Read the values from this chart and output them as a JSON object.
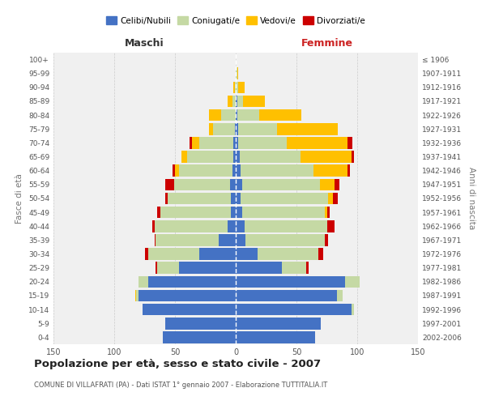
{
  "age_groups": [
    "0-4",
    "5-9",
    "10-14",
    "15-19",
    "20-24",
    "25-29",
    "30-34",
    "35-39",
    "40-44",
    "45-49",
    "50-54",
    "55-59",
    "60-64",
    "65-69",
    "70-74",
    "75-79",
    "80-84",
    "85-89",
    "90-94",
    "95-99",
    "100+"
  ],
  "birth_years": [
    "2002-2006",
    "1997-2001",
    "1992-1996",
    "1987-1991",
    "1982-1986",
    "1977-1981",
    "1972-1976",
    "1967-1971",
    "1962-1966",
    "1957-1961",
    "1952-1956",
    "1947-1951",
    "1942-1946",
    "1937-1941",
    "1932-1936",
    "1927-1931",
    "1922-1926",
    "1917-1921",
    "1912-1916",
    "1907-1911",
    "≤ 1906"
  ],
  "male": {
    "celibi": [
      60,
      58,
      77,
      80,
      72,
      47,
      30,
      14,
      7,
      4,
      4,
      5,
      3,
      2,
      2,
      1,
      0,
      0,
      0,
      0,
      0
    ],
    "coniugati": [
      0,
      0,
      0,
      2,
      8,
      18,
      42,
      52,
      60,
      58,
      52,
      46,
      44,
      38,
      28,
      18,
      12,
      3,
      1,
      0,
      0
    ],
    "vedovi": [
      0,
      0,
      0,
      1,
      0,
      0,
      0,
      0,
      0,
      0,
      0,
      0,
      3,
      5,
      6,
      3,
      10,
      4,
      1,
      0,
      0
    ],
    "divorziati": [
      0,
      0,
      0,
      0,
      0,
      1,
      3,
      1,
      2,
      3,
      2,
      7,
      2,
      0,
      2,
      0,
      0,
      0,
      0,
      0,
      0
    ]
  },
  "female": {
    "nubili": [
      65,
      70,
      95,
      83,
      90,
      38,
      18,
      8,
      7,
      5,
      4,
      5,
      4,
      3,
      2,
      2,
      1,
      1,
      0,
      0,
      0
    ],
    "coniugate": [
      0,
      0,
      2,
      5,
      12,
      20,
      50,
      65,
      68,
      68,
      72,
      64,
      60,
      50,
      40,
      32,
      18,
      5,
      2,
      1,
      0
    ],
    "vedove": [
      0,
      0,
      0,
      0,
      0,
      0,
      0,
      0,
      0,
      2,
      4,
      12,
      28,
      42,
      50,
      50,
      35,
      18,
      5,
      1,
      0
    ],
    "divorziate": [
      0,
      0,
      0,
      0,
      0,
      2,
      4,
      3,
      6,
      2,
      4,
      4,
      2,
      2,
      4,
      0,
      0,
      0,
      0,
      0,
      0
    ]
  },
  "colors": {
    "celibi": "#4472c4",
    "coniugati": "#c5d9a4",
    "vedovi": "#ffc000",
    "divorziati": "#cc0000"
  },
  "title": "Popolazione per età, sesso e stato civile - 2007",
  "subtitle": "COMUNE DI VILLAFRATI (PA) - Dati ISTAT 1° gennaio 2007 - Elaborazione TUTTITALIA.IT",
  "xlabel_left": "Maschi",
  "xlabel_right": "Femmine",
  "ylabel_left": "Fasce di età",
  "ylabel_right": "Anni di nascita",
  "xlim": 150,
  "legend_labels": [
    "Celibi/Nubili",
    "Coniugati/e",
    "Vedovi/e",
    "Divorziati/e"
  ],
  "bg_color": "#ffffff",
  "plot_bg": "#f0f0f0",
  "grid_color": "#cccccc"
}
